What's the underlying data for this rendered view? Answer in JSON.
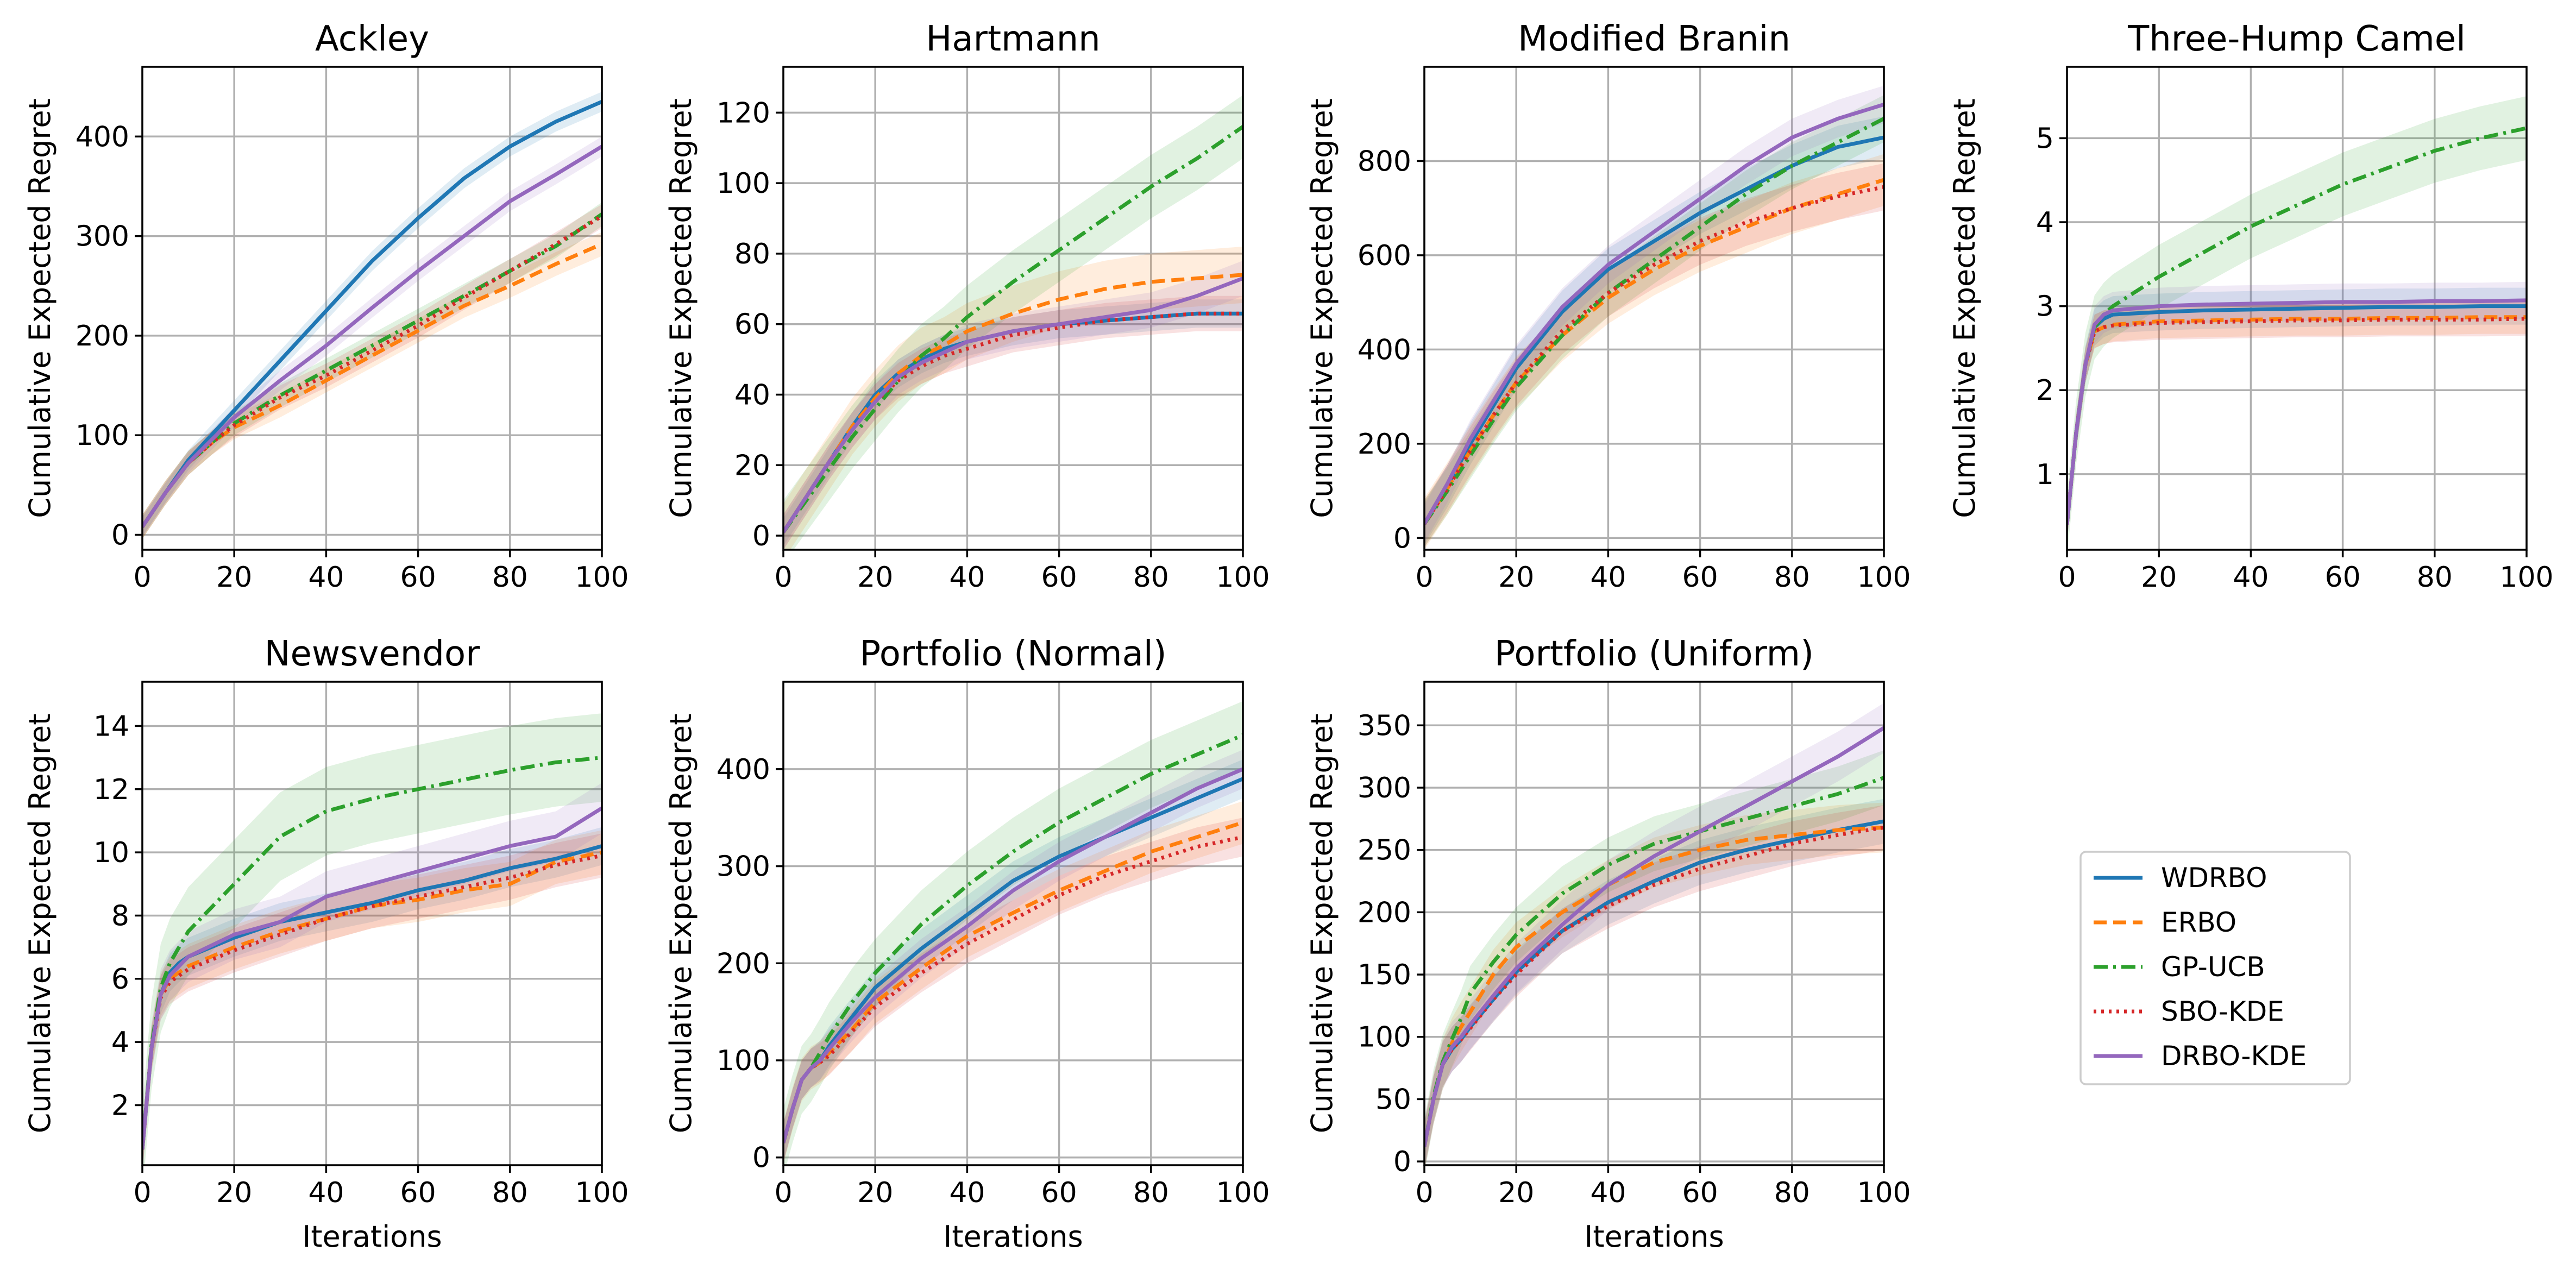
{
  "figure": {
    "legend": [
      "WDRBO",
      "ERBO",
      "GP-UCB",
      "SBO-KDE",
      "DRBO-KDE"
    ]
  },
  "series_styles": {
    "WDRBO": {
      "color": "#1f77b4",
      "dash": "solid"
    },
    "ERBO": {
      "color": "#ff7f0e",
      "dash": "dashed"
    },
    "GP-UCB": {
      "color": "#2ca02c",
      "dash": "dashdot"
    },
    "SBO-KDE": {
      "color": "#d62728",
      "dash": "dotted"
    },
    "DRBO-KDE": {
      "color": "#9467bd",
      "dash": "solid"
    }
  },
  "chart_data": [
    {
      "type": "line",
      "title": "Ackley",
      "xlabel": "",
      "ylabel": "Cumulative Expected Regret",
      "xlim": [
        0,
        100
      ],
      "ylim": [
        -15,
        470
      ],
      "xticks": [
        0,
        20,
        40,
        60,
        80,
        100
      ],
      "yticks": [
        0,
        100,
        200,
        300,
        400
      ],
      "grid": true,
      "x": [
        0,
        5,
        10,
        15,
        20,
        30,
        40,
        50,
        60,
        70,
        80,
        90,
        100
      ],
      "series": [
        {
          "name": "WDRBO",
          "values": [
            8,
            42,
            75,
            100,
            125,
            175,
            225,
            275,
            318,
            358,
            390,
            415,
            435
          ],
          "band": 10
        },
        {
          "name": "ERBO",
          "values": [
            8,
            42,
            72,
            92,
            108,
            130,
            155,
            180,
            205,
            230,
            250,
            272,
            292
          ],
          "band": 12
        },
        {
          "name": "GP-UCB",
          "values": [
            8,
            42,
            72,
            92,
            112,
            140,
            165,
            190,
            215,
            240,
            265,
            290,
            322
          ],
          "band": 12
        },
        {
          "name": "SBO-KDE",
          "values": [
            8,
            42,
            72,
            92,
            110,
            138,
            160,
            185,
            210,
            238,
            265,
            292,
            320
          ],
          "band": 12
        },
        {
          "name": "DRBO-KDE",
          "values": [
            8,
            42,
            72,
            95,
            118,
            155,
            190,
            228,
            265,
            300,
            335,
            362,
            390
          ],
          "band": 10
        }
      ]
    },
    {
      "type": "line",
      "title": "Hartmann",
      "xlabel": "",
      "ylabel": "Cumulative Expected Regret",
      "xlim": [
        0,
        100
      ],
      "ylim": [
        -4,
        133
      ],
      "xticks": [
        0,
        20,
        40,
        60,
        80,
        100
      ],
      "yticks": [
        0,
        20,
        40,
        60,
        80,
        100,
        120
      ],
      "grid": true,
      "x": [
        0,
        5,
        10,
        15,
        20,
        25,
        30,
        35,
        40,
        50,
        60,
        70,
        80,
        90,
        100
      ],
      "series": [
        {
          "name": "WDRBO",
          "values": [
            1,
            11,
            21,
            31,
            40,
            46,
            50,
            53,
            55,
            58,
            60,
            61,
            62,
            63,
            63
          ],
          "band": 4
        },
        {
          "name": "ERBO",
          "values": [
            1,
            11,
            21,
            31,
            39,
            46,
            51,
            54,
            58,
            63,
            67,
            70,
            72,
            73,
            74
          ],
          "band": 8
        },
        {
          "name": "GP-UCB",
          "values": [
            1,
            10,
            19,
            28,
            36,
            44,
            51,
            56,
            62,
            72,
            81,
            90,
            99,
            107,
            116
          ],
          "band": 9
        },
        {
          "name": "SBO-KDE",
          "values": [
            1,
            11,
            21,
            30,
            38,
            44,
            48,
            51,
            53,
            57,
            59,
            61,
            62,
            63,
            63
          ],
          "band": 5
        },
        {
          "name": "DRBO-KDE",
          "values": [
            1,
            11,
            21,
            30,
            38,
            45,
            49,
            52,
            55,
            58,
            60,
            62,
            64,
            68,
            73
          ],
          "band": 5
        }
      ]
    },
    {
      "type": "line",
      "title": "Modified Branin",
      "xlabel": "",
      "ylabel": "Cumulative Expected Regret",
      "xlim": [
        0,
        100
      ],
      "ylim": [
        -25,
        1000
      ],
      "xticks": [
        0,
        20,
        40,
        60,
        80,
        100
      ],
      "yticks": [
        0,
        200,
        400,
        600,
        800
      ],
      "grid": true,
      "x": [
        0,
        5,
        10,
        15,
        20,
        30,
        40,
        50,
        60,
        70,
        80,
        90,
        100
      ],
      "series": [
        {
          "name": "WDRBO",
          "values": [
            30,
            110,
            200,
            280,
            360,
            480,
            570,
            630,
            690,
            740,
            790,
            830,
            850
          ],
          "band": 45
        },
        {
          "name": "ERBO",
          "values": [
            30,
            105,
            185,
            260,
            330,
            430,
            510,
            570,
            620,
            660,
            700,
            730,
            760
          ],
          "band": 55
        },
        {
          "name": "GP-UCB",
          "values": [
            30,
            100,
            175,
            250,
            320,
            430,
            520,
            590,
            660,
            730,
            790,
            840,
            890
          ],
          "band": 50
        },
        {
          "name": "SBO-KDE",
          "values": [
            30,
            105,
            185,
            260,
            330,
            440,
            520,
            580,
            630,
            670,
            700,
            725,
            745
          ],
          "band": 50
        },
        {
          "name": "DRBO-KDE",
          "values": [
            30,
            115,
            210,
            290,
            370,
            490,
            580,
            650,
            720,
            790,
            850,
            890,
            920
          ],
          "band": 40
        }
      ]
    },
    {
      "type": "line",
      "title": "Three-Hump Camel",
      "xlabel": "",
      "ylabel": "Cumulative Expected Regret",
      "xlim": [
        0,
        100
      ],
      "ylim": [
        0.1,
        5.85
      ],
      "xticks": [
        0,
        20,
        40,
        60,
        80,
        100
      ],
      "yticks": [
        1,
        2,
        3,
        4,
        5
      ],
      "grid": true,
      "x": [
        0,
        2,
        4,
        6,
        8,
        10,
        20,
        30,
        40,
        50,
        60,
        70,
        80,
        90,
        100
      ],
      "series": [
        {
          "name": "WDRBO",
          "values": [
            0.4,
            1.5,
            2.3,
            2.75,
            2.85,
            2.9,
            2.93,
            2.95,
            2.96,
            2.97,
            2.98,
            2.99,
            2.99,
            3.0,
            3.0
          ],
          "band": 0.22
        },
        {
          "name": "ERBO",
          "values": [
            0.4,
            1.5,
            2.3,
            2.7,
            2.75,
            2.78,
            2.82,
            2.83,
            2.84,
            2.85,
            2.85,
            2.86,
            2.86,
            2.87,
            2.87
          ],
          "band": 0.2
        },
        {
          "name": "GP-UCB",
          "values": [
            0.4,
            1.5,
            2.3,
            2.75,
            2.9,
            3.0,
            3.35,
            3.65,
            3.95,
            4.2,
            4.45,
            4.65,
            4.85,
            5.0,
            5.12
          ],
          "band": 0.38
        },
        {
          "name": "SBO-KDE",
          "values": [
            0.4,
            1.5,
            2.3,
            2.7,
            2.75,
            2.77,
            2.8,
            2.81,
            2.82,
            2.83,
            2.83,
            2.84,
            2.84,
            2.84,
            2.85
          ],
          "band": 0.2
        },
        {
          "name": "DRBO-KDE",
          "values": [
            0.4,
            1.5,
            2.3,
            2.78,
            2.9,
            2.95,
            3.0,
            3.02,
            3.03,
            3.04,
            3.05,
            3.05,
            3.06,
            3.06,
            3.07
          ],
          "band": 0.22
        }
      ]
    },
    {
      "type": "line",
      "title": "Newsvendor",
      "xlabel": "Iterations",
      "ylabel": "Cumulative Expected Regret",
      "xlim": [
        0,
        100
      ],
      "ylim": [
        0.1,
        15.4
      ],
      "xticks": [
        0,
        20,
        40,
        60,
        80,
        100
      ],
      "yticks": [
        2,
        4,
        6,
        8,
        10,
        12,
        14
      ],
      "grid": true,
      "x": [
        0,
        2,
        4,
        6,
        8,
        10,
        20,
        30,
        40,
        50,
        60,
        70,
        80,
        90,
        100
      ],
      "series": [
        {
          "name": "WDRBO",
          "values": [
            0.6,
            3.8,
            5.5,
            6.2,
            6.5,
            6.7,
            7.3,
            7.8,
            8.1,
            8.4,
            8.8,
            9.1,
            9.5,
            9.8,
            10.2
          ],
          "band": 0.6
        },
        {
          "name": "ERBO",
          "values": [
            0.6,
            3.8,
            5.5,
            6.0,
            6.2,
            6.4,
            7.0,
            7.5,
            7.9,
            8.3,
            8.5,
            8.8,
            9.0,
            9.7,
            10.0
          ],
          "band": 0.7
        },
        {
          "name": "GP-UCB",
          "values": [
            0.6,
            3.9,
            5.7,
            6.5,
            7.0,
            7.5,
            9.0,
            10.5,
            11.3,
            11.7,
            12.0,
            12.3,
            12.6,
            12.85,
            13.0
          ],
          "band": 1.4
        },
        {
          "name": "SBO-KDE",
          "values": [
            0.6,
            3.8,
            5.4,
            5.9,
            6.1,
            6.3,
            6.9,
            7.4,
            7.9,
            8.3,
            8.6,
            8.9,
            9.2,
            9.6,
            9.9
          ],
          "band": 0.7
        },
        {
          "name": "DRBO-KDE",
          "values": [
            0.6,
            3.8,
            5.5,
            6.1,
            6.4,
            6.7,
            7.4,
            7.8,
            8.6,
            9.0,
            9.4,
            9.8,
            10.2,
            10.5,
            11.4
          ],
          "band": 0.8
        }
      ]
    },
    {
      "type": "line",
      "title": "Portfolio (Normal)",
      "xlabel": "Iterations",
      "ylabel": "Cumulative Expected Regret",
      "xlim": [
        0,
        100
      ],
      "ylim": [
        -8,
        490
      ],
      "xticks": [
        0,
        20,
        40,
        60,
        80,
        100
      ],
      "yticks": [
        0,
        100,
        200,
        300,
        400
      ],
      "grid": true,
      "x": [
        0,
        2,
        4,
        6,
        8,
        10,
        15,
        20,
        30,
        40,
        50,
        60,
        70,
        80,
        90,
        100
      ],
      "series": [
        {
          "name": "WDRBO",
          "values": [
            15,
            50,
            80,
            92,
            100,
            115,
            145,
            175,
            215,
            250,
            285,
            310,
            330,
            350,
            370,
            390
          ],
          "band": 20
        },
        {
          "name": "ERBO",
          "values": [
            15,
            50,
            80,
            92,
            98,
            108,
            132,
            160,
            195,
            228,
            252,
            275,
            295,
            315,
            330,
            345
          ],
          "band": 22
        },
        {
          "name": "GP-UCB",
          "values": [
            15,
            50,
            80,
            92,
            108,
            125,
            160,
            190,
            240,
            280,
            315,
            345,
            370,
            395,
            415,
            435
          ],
          "band": 35
        },
        {
          "name": "SBO-KDE",
          "values": [
            15,
            50,
            80,
            92,
            98,
            105,
            130,
            155,
            190,
            220,
            245,
            270,
            290,
            305,
            320,
            330
          ],
          "band": 20
        },
        {
          "name": "DRBO-KDE",
          "values": [
            15,
            50,
            80,
            92,
            100,
            112,
            140,
            165,
            205,
            238,
            275,
            305,
            330,
            355,
            380,
            400
          ],
          "band": 20
        }
      ]
    },
    {
      "type": "line",
      "title": "Portfolio (Uniform)",
      "xlabel": "Iterations",
      "ylabel": "Cumulative Expected Regret",
      "xlim": [
        0,
        100
      ],
      "ylim": [
        -3,
        385
      ],
      "xticks": [
        0,
        20,
        40,
        60,
        80,
        100
      ],
      "yticks": [
        0,
        50,
        100,
        150,
        200,
        250,
        300,
        350
      ],
      "grid": true,
      "x": [
        0,
        2,
        4,
        6,
        8,
        10,
        15,
        20,
        30,
        40,
        50,
        60,
        70,
        80,
        90,
        100
      ],
      "series": [
        {
          "name": "WDRBO",
          "values": [
            12,
            50,
            78,
            90,
            98,
            108,
            130,
            152,
            185,
            208,
            225,
            240,
            250,
            258,
            266,
            273
          ],
          "band": 18
        },
        {
          "name": "ERBO",
          "values": [
            12,
            50,
            78,
            95,
            108,
            120,
            150,
            172,
            200,
            222,
            240,
            250,
            258,
            262,
            266,
            268
          ],
          "band": 20
        },
        {
          "name": "GP-UCB",
          "values": [
            12,
            52,
            80,
            98,
            115,
            135,
            160,
            182,
            215,
            238,
            255,
            265,
            275,
            285,
            295,
            308
          ],
          "band": 22
        },
        {
          "name": "SBO-KDE",
          "values": [
            12,
            50,
            78,
            90,
            98,
            107,
            130,
            150,
            185,
            205,
            222,
            235,
            245,
            255,
            262,
            268
          ],
          "band": 18
        },
        {
          "name": "DRBO-KDE",
          "values": [
            12,
            50,
            78,
            92,
            100,
            110,
            133,
            155,
            190,
            222,
            245,
            265,
            285,
            305,
            325,
            348
          ],
          "band": 20
        }
      ]
    }
  ]
}
